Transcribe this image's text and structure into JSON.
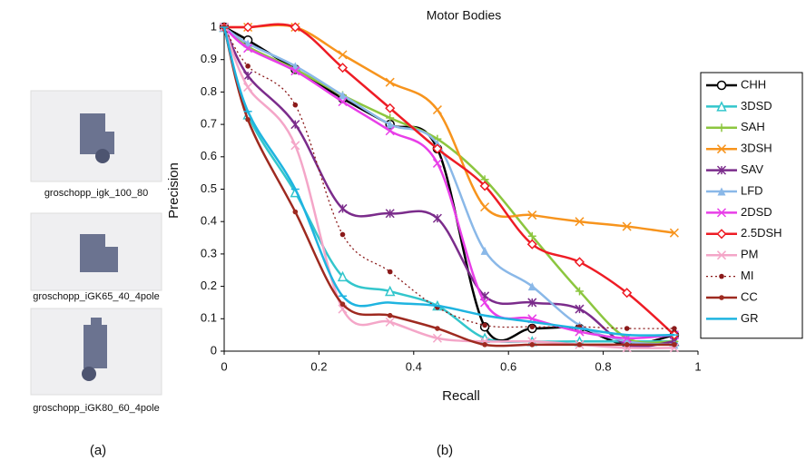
{
  "models": [
    {
      "label": "groschopp_igk_100_80"
    },
    {
      "label": "groschopp_iGK65_40_4pole"
    },
    {
      "label": "groschopp_iGK80_60_4pole"
    }
  ],
  "captions": [
    "(a)",
    "(b)"
  ],
  "chart_data": {
    "type": "line",
    "title": "Motor Bodies",
    "x_label": "Recall",
    "y_label": "Precision",
    "x": [
      0,
      0.05,
      0.15,
      0.25,
      0.35,
      0.45,
      0.55,
      0.65,
      0.75,
      0.85,
      0.95
    ],
    "xlim": [
      0,
      1
    ],
    "ylim": [
      0,
      1
    ],
    "xticks": [
      0,
      0.2,
      0.4,
      0.6,
      0.8,
      1
    ],
    "yticks": [
      0,
      0.1,
      0.2,
      0.3,
      0.4,
      0.5,
      0.6,
      0.7,
      0.8,
      0.9,
      1
    ],
    "legend": "right",
    "series": [
      {
        "name": "CHH",
        "color": "#000000",
        "marker": "circle-open",
        "values": [
          1,
          0.96,
          0.87,
          0.78,
          0.7,
          0.625,
          0.075,
          0.07,
          0.07,
          0.02,
          0.05
        ]
      },
      {
        "name": "3DSD",
        "color": "#33c6cc",
        "marker": "triangle-open",
        "values": [
          1,
          0.73,
          0.49,
          0.23,
          0.185,
          0.14,
          0.04,
          0.03,
          0.03,
          0.03,
          0.03
        ]
      },
      {
        "name": "SAH",
        "color": "#8cc63f",
        "marker": "plus",
        "values": [
          1,
          0.94,
          0.87,
          0.79,
          0.72,
          0.655,
          0.53,
          0.355,
          0.185,
          0.04,
          0.03
        ]
      },
      {
        "name": "3DSH",
        "color": "#f7941d",
        "marker": "x",
        "values": [
          1,
          1,
          1,
          0.915,
          0.83,
          0.745,
          0.445,
          0.42,
          0.4,
          0.385,
          0.365
        ]
      },
      {
        "name": "SAV",
        "color": "#7b2c8b",
        "marker": "star",
        "values": [
          1,
          0.85,
          0.7,
          0.44,
          0.425,
          0.41,
          0.17,
          0.15,
          0.13,
          0.02,
          0.03
        ]
      },
      {
        "name": "LFD",
        "color": "#8ab8e8",
        "marker": "triangle",
        "values": [
          1,
          0.95,
          0.88,
          0.79,
          0.7,
          0.64,
          0.31,
          0.2,
          0.08,
          0.03,
          0.02
        ]
      },
      {
        "name": "2DSD",
        "color": "#e83ee8",
        "marker": "x",
        "values": [
          1,
          0.935,
          0.865,
          0.77,
          0.68,
          0.58,
          0.15,
          0.1,
          0.06,
          0.04,
          0.05
        ]
      },
      {
        "name": "2.5DSH",
        "color": "#ee1c25",
        "marker": "diamond-open",
        "values": [
          1,
          1,
          1,
          0.875,
          0.75,
          0.625,
          0.51,
          0.33,
          0.275,
          0.18,
          0.05
        ]
      },
      {
        "name": "PM",
        "color": "#f4a6c8",
        "marker": "x",
        "values": [
          1,
          0.815,
          0.635,
          0.13,
          0.09,
          0.04,
          0.03,
          0.03,
          0.02,
          0.01,
          0.01
        ]
      },
      {
        "name": "MI",
        "color": "#8b1a1a",
        "marker": "dot",
        "dash": "dotted",
        "values": [
          1,
          0.88,
          0.76,
          0.36,
          0.245,
          0.135,
          0.08,
          0.075,
          0.075,
          0.07,
          0.07
        ]
      },
      {
        "name": "CC",
        "color": "#9e2a20",
        "marker": "dot",
        "values": [
          1,
          0.715,
          0.43,
          0.145,
          0.11,
          0.07,
          0.02,
          0.02,
          0.02,
          0.02,
          0.02
        ]
      },
      {
        "name": "GR",
        "color": "#1fb4e0",
        "marker": "dash",
        "values": [
          1,
          0.74,
          0.5,
          0.17,
          0.15,
          0.14,
          0.11,
          0.09,
          0.07,
          0.05,
          0.05
        ]
      }
    ]
  }
}
